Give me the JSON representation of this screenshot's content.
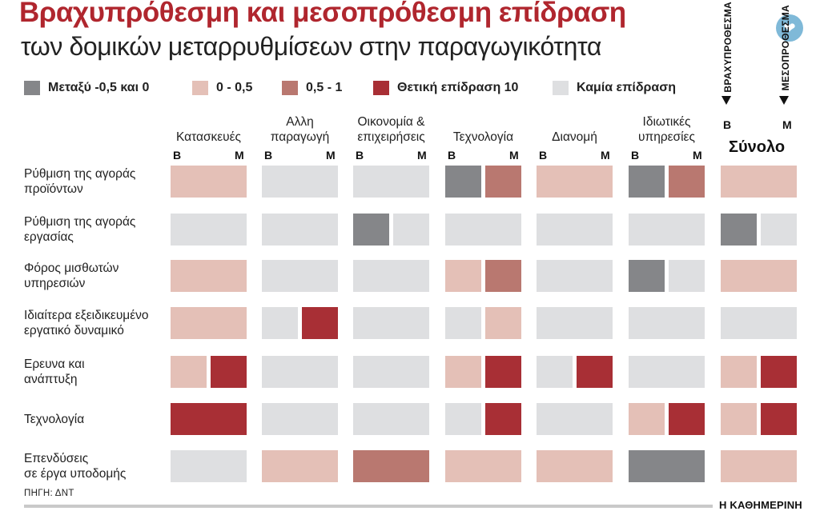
{
  "header": {
    "title": "Βραχυπρόθεσμη και μεσοπρόθεσμη επίδραση",
    "subtitle": "των δομικών μεταρρυθμίσεων στην παραγωγικότητα"
  },
  "colors": {
    "neg": "#858689",
    "low": "#e4c0b7",
    "mid": "#b97870",
    "high": "#a82f35",
    "none": "#dedfe1",
    "title": "#b0262e"
  },
  "legend": [
    {
      "key": "neg",
      "label": "Μεταξύ -0,5 και 0"
    },
    {
      "key": "low",
      "label": "0 - 0,5"
    },
    {
      "key": "mid",
      "label": "0,5 - 1"
    },
    {
      "key": "high",
      "label": "Θετική επίδραση 10"
    },
    {
      "key": "none",
      "label": "Καμία επίδραση"
    }
  ],
  "chart_data": {
    "type": "heatmap",
    "title": "Βραχυπρόθεσμη και μεσοπρόθεσμη επίδραση",
    "subtitle": "των δομικών μεταρρυθμίσεων στην παραγωγικότητα",
    "sub_columns": [
      "Β",
      "Μ"
    ],
    "columns": [
      {
        "lines": [
          "Κατασκευές"
        ]
      },
      {
        "lines": [
          "Αλλη",
          "παραγωγή"
        ]
      },
      {
        "lines": [
          "Οικονομία &",
          "επιχειρήσεις"
        ]
      },
      {
        "lines": [
          "Τεχνολογία"
        ]
      },
      {
        "lines": [
          "Διανομή"
        ]
      },
      {
        "lines": [
          "Ιδιωτικές",
          "υπηρεσίες"
        ]
      }
    ],
    "total_column": {
      "label": "Σύνολο",
      "short_term": "ΒΡΑΧΥΠΡΟΘΕΣΜΑ",
      "medium_term": "ΜΕΣΟΠΡΟΘΕΣΜΑ"
    },
    "rows": [
      {
        "lines": [
          "Ρύθμιση της αγοράς",
          "προϊόντων"
        ],
        "cells": [
          [
            "low",
            "low"
          ],
          [
            "none",
            "none"
          ],
          [
            "none",
            "none"
          ],
          [
            "neg",
            "mid"
          ],
          [
            "low",
            "low"
          ],
          [
            "neg",
            "mid"
          ]
        ],
        "total": [
          "low",
          "low"
        ]
      },
      {
        "lines": [
          "Ρύθμιση της αγοράς",
          "εργασίας"
        ],
        "cells": [
          [
            "none",
            "none"
          ],
          [
            "none",
            "none"
          ],
          [
            "neg",
            "none"
          ],
          [
            "none",
            "none"
          ],
          [
            "none",
            "none"
          ],
          [
            "none",
            "none"
          ]
        ],
        "total": [
          "neg",
          "none"
        ]
      },
      {
        "lines": [
          "Φόρος μισθωτών",
          "υπηρεσιών"
        ],
        "cells": [
          [
            "low",
            "low"
          ],
          [
            "none",
            "none"
          ],
          [
            "none",
            "none"
          ],
          [
            "low",
            "mid"
          ],
          [
            "none",
            "none"
          ],
          [
            "neg",
            "none"
          ]
        ],
        "total": [
          "low",
          "low"
        ]
      },
      {
        "lines": [
          "Ιδιαίτερα εξειδικευμένο",
          "εργατικό δυναμικό"
        ],
        "cells": [
          [
            "low",
            "low"
          ],
          [
            "none",
            "high"
          ],
          [
            "none",
            "none"
          ],
          [
            "none",
            "low"
          ],
          [
            "none",
            "none"
          ],
          [
            "none",
            "none"
          ]
        ],
        "total": [
          "none",
          "none"
        ]
      },
      {
        "lines": [
          "Ερευνα και",
          "ανάπτυξη"
        ],
        "cells": [
          [
            "low",
            "high"
          ],
          [
            "none",
            "none"
          ],
          [
            "none",
            "none"
          ],
          [
            "low",
            "high"
          ],
          [
            "none",
            "high"
          ],
          [
            "none",
            "none"
          ]
        ],
        "total": [
          "low",
          "high"
        ]
      },
      {
        "lines": [
          "Τεχνολογία"
        ],
        "cells": [
          [
            "high",
            "high"
          ],
          [
            "none",
            "none"
          ],
          [
            "none",
            "none"
          ],
          [
            "none",
            "high"
          ],
          [
            "none",
            "none"
          ],
          [
            "low",
            "high"
          ]
        ],
        "total": [
          "low",
          "high"
        ]
      },
      {
        "lines": [
          "Επενδύσεις",
          "σε έργα υποδομής"
        ],
        "cells": [
          [
            "none",
            "none"
          ],
          [
            "low",
            "low"
          ],
          [
            "mid",
            "mid"
          ],
          [
            "low",
            "low"
          ],
          [
            "low",
            "low"
          ],
          [
            "neg",
            "neg"
          ]
        ],
        "total": [
          "low",
          "low"
        ]
      }
    ]
  },
  "footer": {
    "source": "ΠΗΓΗ: ΔΝΤ",
    "brand": "Η ΚΑΘΗΜΕΡΙΝΗ"
  },
  "icons": {
    "corner": "water-drop-icon"
  }
}
